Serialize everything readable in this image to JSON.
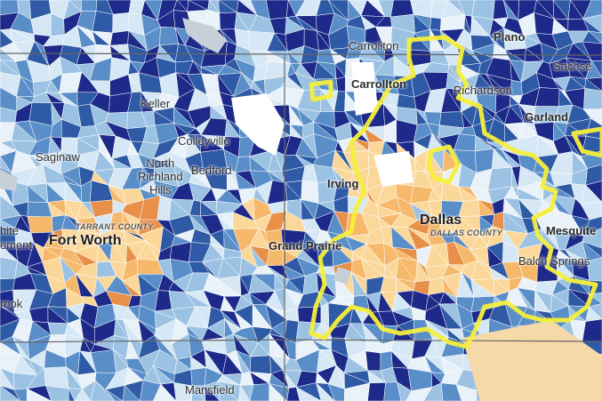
{
  "colors": {
    "very_high": "#1d2a8a",
    "high": "#2f5aa6",
    "mid_high": "#5a8ec8",
    "mid": "#9cc2e3",
    "low": "#d6e8f5",
    "neutral": "#eaf2f9",
    "warm_low": "#fbd89a",
    "warm_mid": "#f6b86a",
    "warm_high": "#e8904a",
    "water": "#bfc9d3",
    "highlight": "#f4ef3c",
    "county_line": "#666666"
  },
  "cities": {
    "carrollton_top": "Carrollton",
    "carrollton": "Carrollton",
    "plano": "Plano",
    "sachse": "Sachse",
    "richardson": "Richardson",
    "garland": "Garland",
    "keller": "Keller",
    "colleyville": "Colleyville",
    "saginaw": "Saginaw",
    "north_richland_hills_1": "North",
    "north_richland_hills_2": "Richland",
    "north_richland_hills_3": "Hills",
    "bedford": "Bedford",
    "irving": "Irving",
    "dallas": "Dallas",
    "mesquite": "Mesquite",
    "balch_springs": "Balch Springs",
    "fort_worth": "Fort Worth",
    "grand_prairie": "Grand Prairie",
    "white_settlement_1": "hite",
    "white_settlement_2": "ement",
    "benbrook": "rook",
    "mansfield": "Mansfield"
  },
  "counties": {
    "tarrant": "TARRANT COUNTY",
    "dallas": "DALLAS COUNTY"
  }
}
